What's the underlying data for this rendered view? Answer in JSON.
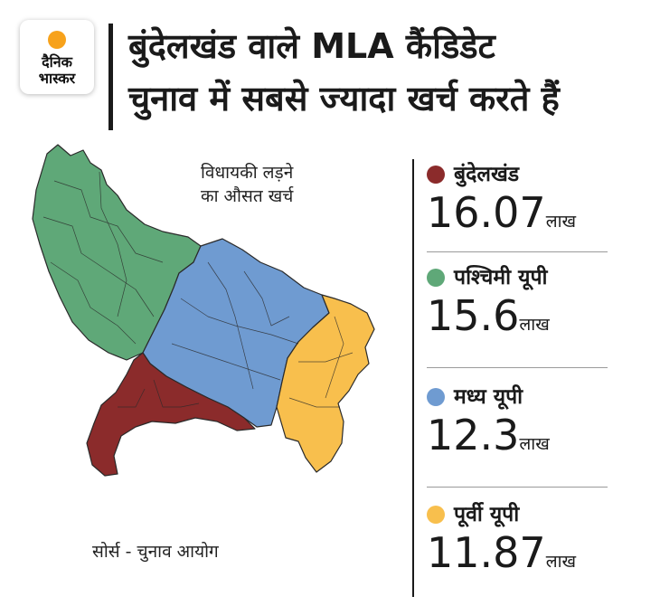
{
  "brand": {
    "line1": "दैनिक",
    "line2": "भास्कर",
    "sun_color": "#f7a21b"
  },
  "title": {
    "line1": "बुंदेलखंड वाले MLA कैंडिडेट",
    "line2": "चुनाव में सबसे ज्यादा खर्च करते हैं"
  },
  "map": {
    "label_line1": "विधायकी लड़ने",
    "label_line2": "का औसत खर्च",
    "source": "सोर्स - चुनाव आयोग"
  },
  "regions": [
    {
      "name": "बुंदेलखंड",
      "value": "16.07",
      "unit": "लाख",
      "color": "#8b2b2b"
    },
    {
      "name": "पश्चिमी यूपी",
      "value": "15.6",
      "unit": "लाख",
      "color": "#5fa878"
    },
    {
      "name": "मध्य यूपी",
      "value": "12.3",
      "unit": "लाख",
      "color": "#6f9bd1"
    },
    {
      "name": "पूर्वी यूपी",
      "value": "11.87",
      "unit": "लाख",
      "color": "#f8bf4d"
    }
  ]
}
